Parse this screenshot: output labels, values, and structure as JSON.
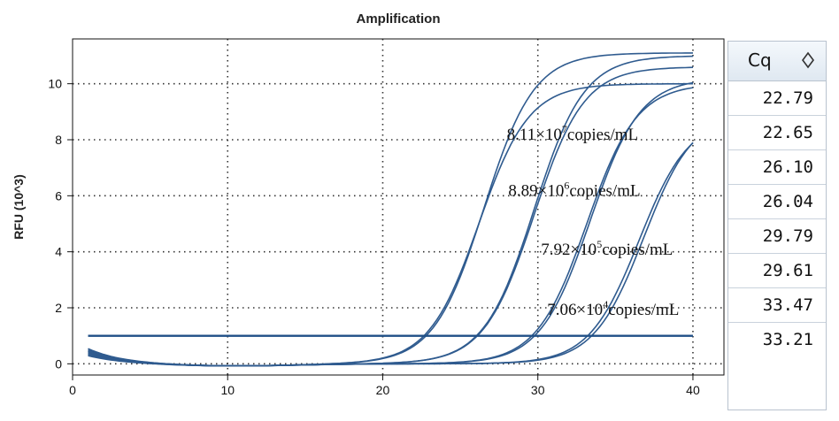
{
  "chart_data": {
    "type": "line",
    "title": "Amplification",
    "xlabel": "",
    "ylabel": "RFU (10^3)",
    "xlim": [
      0,
      42
    ],
    "ylim": [
      -0.4,
      11.6
    ],
    "xticks": [
      0,
      10,
      20,
      30,
      40
    ],
    "yticks": [
      0,
      2,
      4,
      6,
      8,
      10
    ],
    "grid": true,
    "threshold": 1.0,
    "series": [
      {
        "cq": 22.79,
        "plateau": 11.1,
        "baseline": 0.45
      },
      {
        "cq": 22.65,
        "plateau": 10.0,
        "baseline": 0.35
      },
      {
        "cq": 26.1,
        "plateau": 10.6,
        "baseline": 0.55
      },
      {
        "cq": 26.04,
        "plateau": 11.0,
        "baseline": 0.4
      },
      {
        "cq": 29.79,
        "plateau": 10.2,
        "baseline": 0.5
      },
      {
        "cq": 29.61,
        "plateau": 10.0,
        "baseline": 0.3
      },
      {
        "cq": 33.47,
        "plateau": 9.0,
        "baseline": 0.45
      },
      {
        "cq": 33.21,
        "plateau": 8.8,
        "baseline": 0.35
      }
    ],
    "annotations": [
      {
        "mantissa": "8.11×10",
        "exp": "7",
        "unit": "copies/mL",
        "x": 28.0,
        "y": 8.0
      },
      {
        "mantissa": "8.89×10",
        "exp": "6",
        "unit": "copies/mL",
        "x": 28.1,
        "y": 6.0
      },
      {
        "mantissa": "7.92×10",
        "exp": "5",
        "unit": "copies/mL",
        "x": 30.2,
        "y": 3.9
      },
      {
        "mantissa": "7.06×10",
        "exp": "4",
        "unit": "copies/mL",
        "x": 30.6,
        "y": 1.75
      }
    ]
  },
  "cq_table": {
    "header": "Cq",
    "values": [
      "22.79",
      "22.65",
      "26.10",
      "26.04",
      "29.79",
      "29.61",
      "33.47",
      "33.21"
    ]
  },
  "colors": {
    "curve": "#2f5b8f",
    "threshold": "#1f4f86"
  },
  "icons": {
    "sort": "sort-diamond-icon"
  }
}
